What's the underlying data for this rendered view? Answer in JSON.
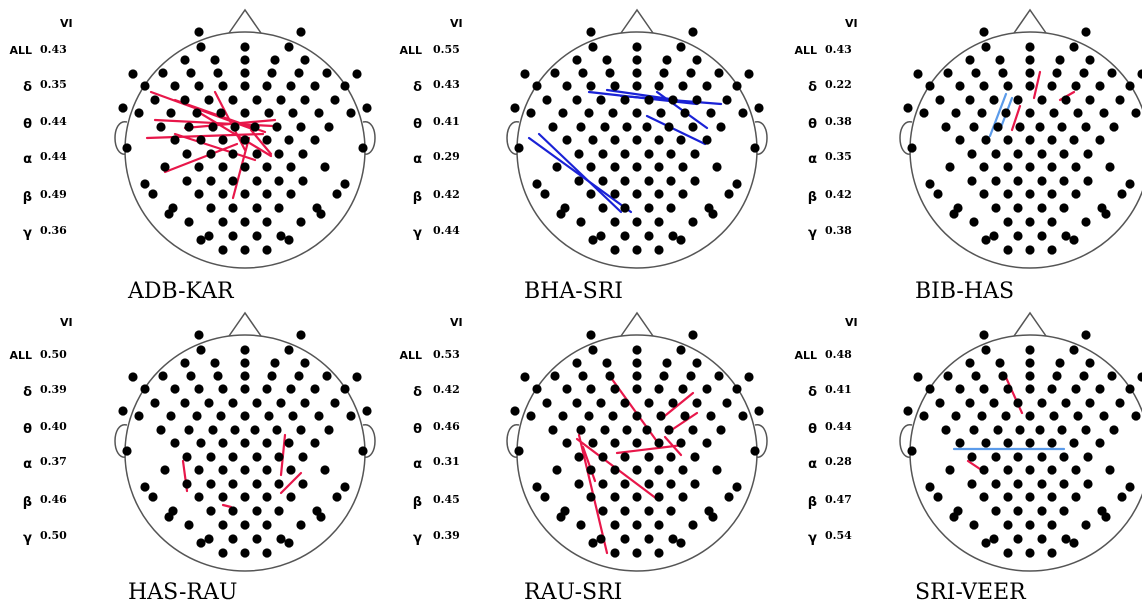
{
  "vi_header": "VI",
  "band_labels": [
    "ALL",
    "δ",
    "θ",
    "α",
    "β",
    "γ"
  ],
  "colors": {
    "positive": "#e8174a",
    "negative_strong": "#1a22d6",
    "negative_light": "#5b9bea",
    "electrode": "#000000",
    "outline": "#555555"
  },
  "panels": [
    {
      "pair": "ADB-KAR",
      "vi": [
        "0.43",
        "0.35",
        "0.44",
        "0.44",
        "0.49",
        "0.36"
      ]
    },
    {
      "pair": "BHA-SRI",
      "vi": [
        "0.55",
        "0.43",
        "0.41",
        "0.29",
        "0.42",
        "0.44"
      ]
    },
    {
      "pair": "BIB-HAS",
      "vi": [
        "0.43",
        "0.22",
        "0.38",
        "0.35",
        "0.42",
        "0.38"
      ]
    },
    {
      "pair": "HAS-RAU",
      "vi": [
        "0.50",
        "0.39",
        "0.40",
        "0.37",
        "0.46",
        "0.50"
      ]
    },
    {
      "pair": "RAU-SRI",
      "vi": [
        "0.53",
        "0.42",
        "0.46",
        "0.31",
        "0.45",
        "0.39"
      ]
    },
    {
      "pair": "SRI-VEER",
      "vi": [
        "0.48",
        "0.41",
        "0.44",
        "0.28",
        "0.47",
        "0.54"
      ]
    }
  ]
}
